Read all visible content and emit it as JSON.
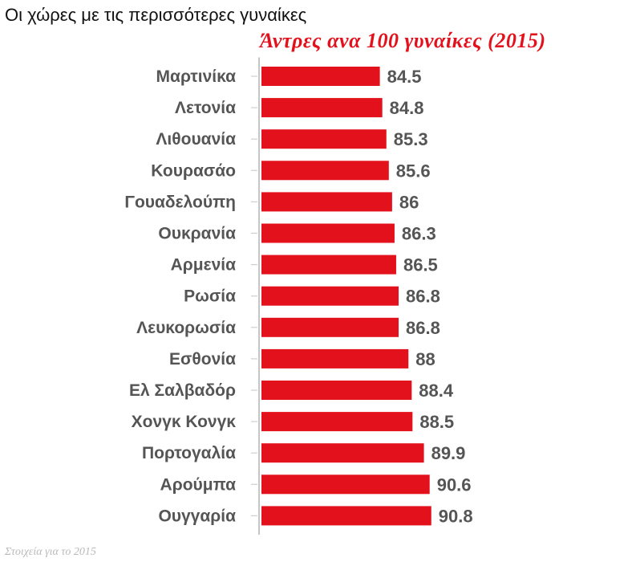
{
  "header": {
    "title": "Οι χώρες με τις περισσότερες γυναίκες"
  },
  "footer": {
    "note": "Στοιχεία για το 2015"
  },
  "colors": {
    "bar": "#e3111b",
    "axis": "#b3b3b3",
    "tick": "#cfcfcf",
    "label": "#555555"
  },
  "chart_data": {
    "type": "bar",
    "orientation": "horizontal",
    "title": "Άντρες ανα 100 γυναίκες (2015)",
    "xlabel": "",
    "ylabel": "",
    "grid": false,
    "legend": "none",
    "categories": [
      "Μαρτινίκα",
      "Λετονία",
      "Λιθουανία",
      "Κουρασάο",
      "Γουαδελούπη",
      "Ουκρανία",
      "Αρμενία",
      "Ρωσία",
      "Λευκορωσία",
      "Εσθονία",
      "Ελ Σαλβαδόρ",
      "Χονγκ Κονγκ",
      "Πορτογαλία",
      "Αρούμπα",
      "Ουγγαρία"
    ],
    "values": [
      84.5,
      84.8,
      85.3,
      85.6,
      86,
      86.3,
      86.5,
      86.8,
      86.8,
      88,
      88.4,
      88.5,
      89.9,
      90.6,
      90.8
    ],
    "value_labels": [
      "84.5",
      "84.8",
      "85.3",
      "85.6",
      "86",
      "86.3",
      "86.5",
      "86.8",
      "86.8",
      "88",
      "88.4",
      "88.5",
      "89.9",
      "90.6",
      "90.8"
    ]
  }
}
